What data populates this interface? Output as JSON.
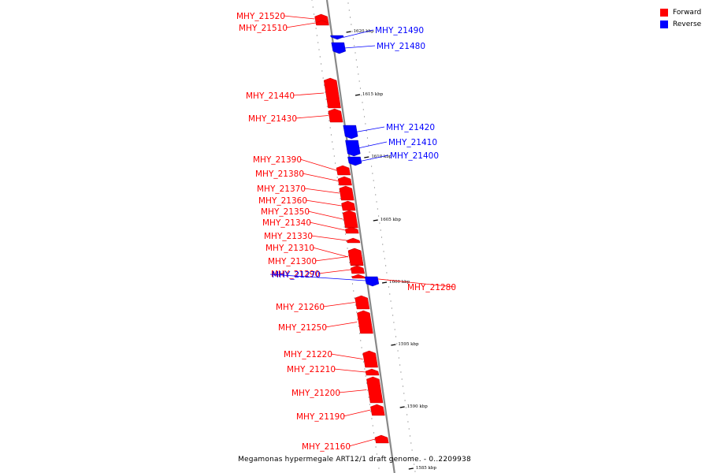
{
  "legend": {
    "items": [
      {
        "label": "Forward",
        "color": "#ff0000"
      },
      {
        "label": "Reverse",
        "color": "#0000ff"
      }
    ]
  },
  "caption": "Megamonas hypermegale ART12/1 draft genome. - 0..2209938",
  "colors": {
    "forward": "#ff0000",
    "reverse": "#0000ff",
    "axis": "#888888"
  },
  "ticks": [
    {
      "label": "1620 kbp"
    },
    {
      "label": "1615 kbp"
    },
    {
      "label": "1610 kbp"
    },
    {
      "label": "1605 kbp"
    },
    {
      "label": "1600 kbp"
    },
    {
      "label": "1595 kbp"
    },
    {
      "label": "1590 kbp"
    },
    {
      "label": "1585 kbp"
    }
  ],
  "genes": [
    {
      "name": "MHY_21520",
      "strand": "forward"
    },
    {
      "name": "MHY_21510",
      "strand": "forward"
    },
    {
      "name": "MHY_21490",
      "strand": "reverse"
    },
    {
      "name": "MHY_21480",
      "strand": "reverse"
    },
    {
      "name": "MHY_21440",
      "strand": "forward"
    },
    {
      "name": "MHY_21430",
      "strand": "forward"
    },
    {
      "name": "MHY_21420",
      "strand": "reverse"
    },
    {
      "name": "MHY_21410",
      "strand": "reverse"
    },
    {
      "name": "MHY_21400",
      "strand": "reverse"
    },
    {
      "name": "MHY_21390",
      "strand": "forward"
    },
    {
      "name": "MHY_21380",
      "strand": "forward"
    },
    {
      "name": "MHY_21370",
      "strand": "forward"
    },
    {
      "name": "MHY_21360",
      "strand": "forward"
    },
    {
      "name": "MHY_21350",
      "strand": "forward"
    },
    {
      "name": "MHY_21340",
      "strand": "forward"
    },
    {
      "name": "MHY_21330",
      "strand": "forward"
    },
    {
      "name": "MHY_21310",
      "strand": "forward"
    },
    {
      "name": "MHY_21300",
      "strand": "forward"
    },
    {
      "name": "MHY_21290",
      "strand": "forward"
    },
    {
      "name": "MHY_21280",
      "strand": "forward"
    },
    {
      "name": "MHY_21270",
      "strand": "reverse"
    },
    {
      "name": "MHY_21260",
      "strand": "forward"
    },
    {
      "name": "MHY_21250",
      "strand": "forward"
    },
    {
      "name": "MHY_21220",
      "strand": "forward"
    },
    {
      "name": "MHY_21210",
      "strand": "forward"
    },
    {
      "name": "MHY_21200",
      "strand": "forward"
    },
    {
      "name": "MHY_21190",
      "strand": "forward"
    },
    {
      "name": "MHY_21160",
      "strand": "forward"
    }
  ]
}
